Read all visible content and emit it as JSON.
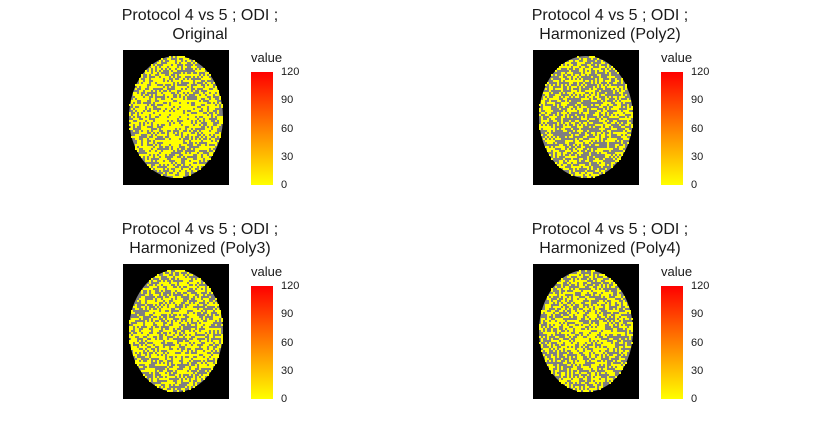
{
  "colors": {
    "low": "#ffff00",
    "mid": "#ff8000",
    "high": "#ff0000",
    "tissue": "#808080",
    "background": "#000000"
  },
  "chart_data": [
    {
      "type": "heatmap",
      "title_line1": "Protocol 4 vs 5 ; ODI ;",
      "title_line2": "Original",
      "legend": {
        "title": "value",
        "ticks": [
          "120",
          "90",
          "60",
          "30",
          "0"
        ],
        "range": [
          0,
          120
        ],
        "placement": "right"
      },
      "yellow_fraction": 0.55
    },
    {
      "type": "heatmap",
      "title_line1": "Protocol 4 vs 5 ; ODI ;",
      "title_line2": "Harmonized (Poly2)",
      "legend": {
        "title": "value",
        "ticks": [
          "120",
          "90",
          "60",
          "30",
          "0"
        ],
        "range": [
          0,
          120
        ],
        "placement": "right"
      },
      "yellow_fraction": 0.45
    },
    {
      "type": "heatmap",
      "title_line1": "Protocol 4 vs 5 ; ODI ;",
      "title_line2": "Harmonized (Poly3)",
      "legend": {
        "title": "value",
        "ticks": [
          "120",
          "90",
          "60",
          "30",
          "0"
        ],
        "range": [
          0,
          120
        ],
        "placement": "right"
      },
      "yellow_fraction": 0.55
    },
    {
      "type": "heatmap",
      "title_line1": "Protocol 4 vs 5 ; ODI ;",
      "title_line2": "Harmonized (Poly4)",
      "legend": {
        "title": "value",
        "ticks": [
          "120",
          "90",
          "60",
          "30",
          "0"
        ],
        "range": [
          0,
          120
        ],
        "placement": "right"
      },
      "yellow_fraction": 0.5
    }
  ]
}
